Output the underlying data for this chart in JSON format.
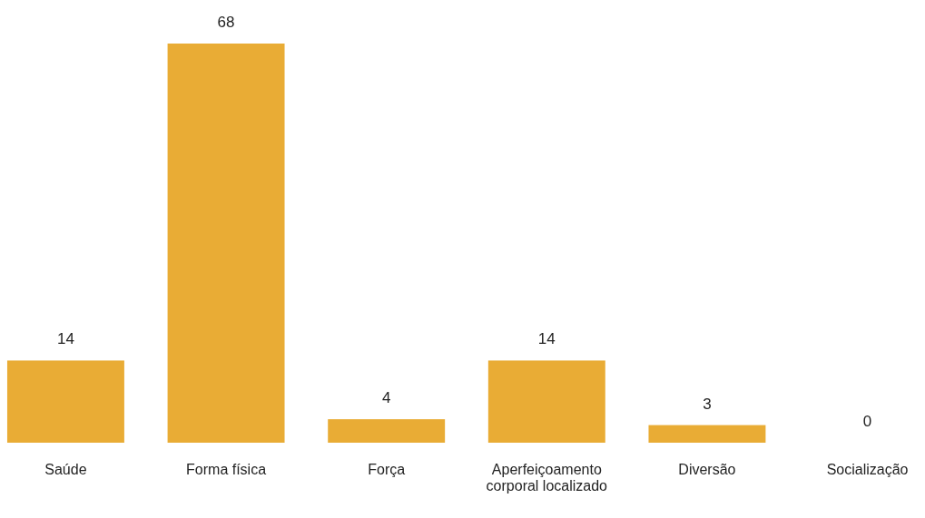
{
  "chart_data": {
    "type": "bar",
    "categories": [
      "Saúde",
      "Forma física",
      "Força",
      "Aperfeiçoamento corporal localizado",
      "Diversão",
      "Socialização"
    ],
    "values": [
      14,
      68,
      4,
      14,
      3,
      0
    ],
    "color": "#e9ac35",
    "data_labels": true
  }
}
